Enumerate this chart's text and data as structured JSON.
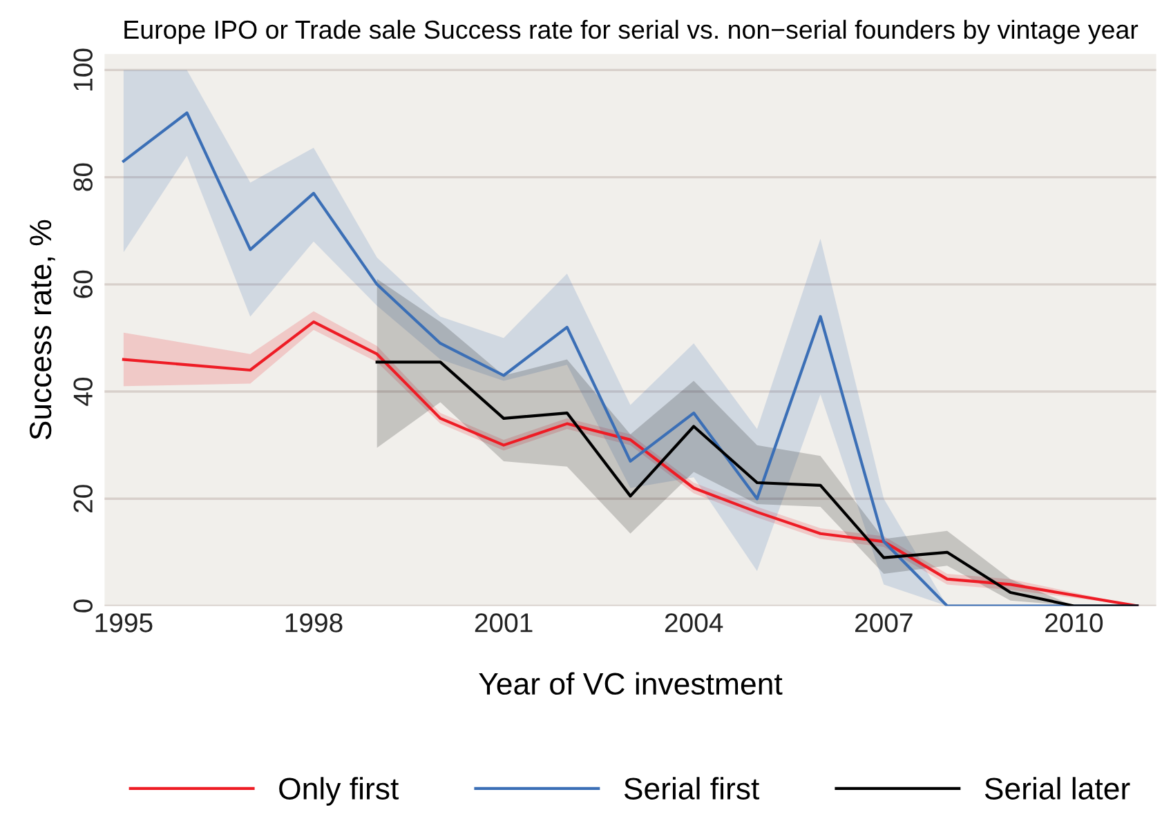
{
  "chart_data": {
    "type": "line",
    "title": "Europe IPO or Trade sale Success rate for serial vs. non−serial founders by vintage year",
    "xlabel": "Year of VC investment",
    "ylabel": "Success rate, %",
    "xlim": [
      1994.7,
      2011.3
    ],
    "ylim": [
      0,
      103
    ],
    "xticks": [
      1995,
      1998,
      2001,
      2004,
      2007,
      2010
    ],
    "yticks": [
      0,
      20,
      40,
      60,
      80,
      100
    ],
    "grid": "y",
    "legend": "bottom",
    "series": [
      {
        "name": "Only first",
        "color": "#ee1c25",
        "x": [
          1995,
          1997,
          1998,
          1999,
          2000,
          2001,
          2002,
          2003,
          2004,
          2005,
          2006,
          2007,
          2008,
          2009,
          2010,
          2011
        ],
        "values": [
          46,
          44,
          53,
          47,
          35,
          30,
          34,
          31,
          22,
          17.5,
          13.5,
          12,
          5,
          4,
          2,
          0
        ],
        "lower": [
          41,
          41.5,
          51.5,
          45.5,
          34,
          29,
          33,
          30,
          21,
          16.5,
          12.5,
          11,
          4,
          3,
          1.5,
          0
        ],
        "upper": [
          51,
          47,
          55,
          48.5,
          36,
          31,
          35,
          32,
          23,
          18.5,
          14.5,
          13,
          6,
          5,
          2.5,
          0
        ]
      },
      {
        "name": "Serial first",
        "color": "#3b6fb6",
        "x": [
          1995,
          1996,
          1997,
          1998,
          1999,
          2000,
          2001,
          2002,
          2003,
          2004,
          2005,
          2006,
          2007,
          2008,
          2009,
          2010,
          2011
        ],
        "values": [
          83,
          92,
          66.5,
          77,
          60,
          49,
          43,
          52,
          27,
          36,
          20,
          54,
          12,
          0,
          0,
          0,
          0
        ],
        "lower": [
          66,
          84,
          54,
          68,
          56,
          46,
          42,
          45,
          22,
          24,
          6.5,
          39.5,
          4,
          0,
          0,
          0,
          0
        ],
        "upper": [
          100,
          100,
          79,
          85.5,
          65,
          54,
          50,
          62,
          37.5,
          49,
          33,
          68.5,
          20,
          0,
          0,
          0,
          0
        ]
      },
      {
        "name": "Serial later",
        "color": "#000000",
        "x": [
          1999,
          2000,
          2001,
          2002,
          2003,
          2004,
          2005,
          2006,
          2007,
          2008,
          2009,
          2010,
          2011
        ],
        "values": [
          45.5,
          45.5,
          35,
          36,
          20.5,
          33.5,
          23,
          22.5,
          9,
          10,
          2.5,
          0,
          0
        ],
        "lower": [
          29.5,
          38,
          27,
          26,
          13.5,
          25,
          19,
          18.5,
          6,
          7.5,
          1,
          0,
          0
        ],
        "upper": [
          61,
          53,
          43,
          46,
          32,
          42,
          30,
          28,
          12.5,
          14,
          5,
          0,
          0
        ]
      }
    ]
  }
}
